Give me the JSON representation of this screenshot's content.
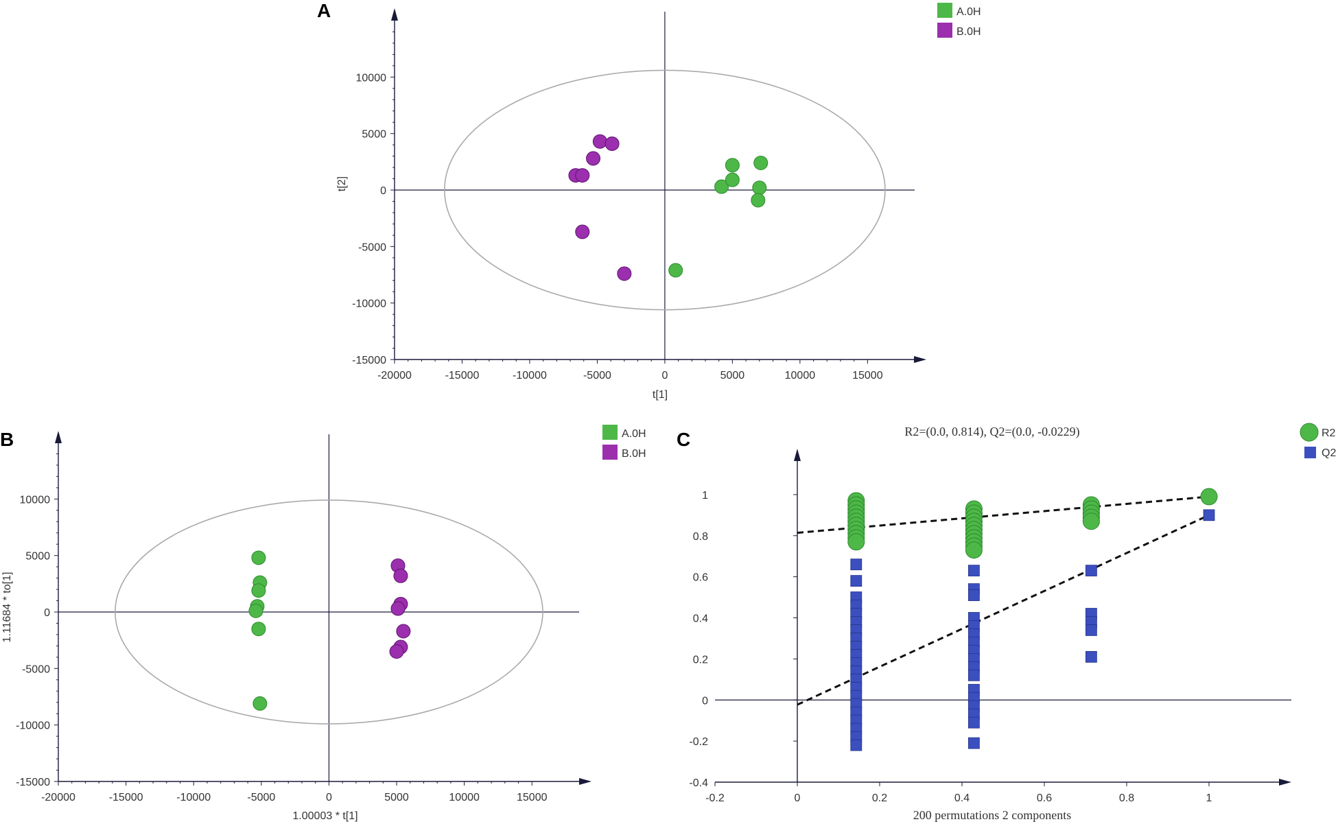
{
  "panels": {
    "a": {
      "letter": "A"
    },
    "b": {
      "letter": "B"
    },
    "c": {
      "letter": "C"
    }
  },
  "colors": {
    "group_a": "#4db848",
    "group_b": "#9b2fae",
    "r2": "#4db848",
    "q2": "#3b4fbf",
    "ellipse": "#aaaaaa",
    "axis": "#1a1a3a"
  },
  "chart_data": [
    {
      "id": "a",
      "type": "scatter",
      "title": "",
      "xlabel": "t[1]",
      "ylabel": "t[2]",
      "xlim": [
        -20000,
        19500
      ],
      "ylim": [
        -15000,
        15000
      ],
      "xticks": [
        -20000,
        -15000,
        -10000,
        -5000,
        0,
        5000,
        10000,
        15000
      ],
      "yticks": [
        -15000,
        -10000,
        -5000,
        0,
        5000,
        10000
      ],
      "ellipse": {
        "cx": 0,
        "cy": 0,
        "rx": 16300,
        "ry": 10600
      },
      "legend": {
        "placement": "top-right"
      },
      "series": [
        {
          "name": "A.0H",
          "color": "#4db848",
          "points": [
            [
              4200,
              300
            ],
            [
              5000,
              900
            ],
            [
              5000,
              2200
            ],
            [
              7100,
              2400
            ],
            [
              7000,
              200
            ],
            [
              6900,
              -900
            ],
            [
              800,
              -7100
            ]
          ]
        },
        {
          "name": "B.0H",
          "color": "#9b2fae",
          "points": [
            [
              -4800,
              4300
            ],
            [
              -3900,
              4100
            ],
            [
              -5300,
              2800
            ],
            [
              -6600,
              1300
            ],
            [
              -6100,
              1300
            ],
            [
              -6100,
              -3700
            ],
            [
              -3000,
              -7400
            ]
          ]
        }
      ]
    },
    {
      "id": "b",
      "type": "scatter",
      "title": "",
      "xlabel": "1.00003 * t[1]",
      "ylabel": "1.11684 * to[1]",
      "xlim": [
        -20000,
        19500
      ],
      "ylim": [
        -15000,
        15000
      ],
      "xticks": [
        -20000,
        -15000,
        -10000,
        -5000,
        0,
        5000,
        10000,
        15000
      ],
      "yticks": [
        -15000,
        -10000,
        -5000,
        0,
        5000,
        10000
      ],
      "ellipse": {
        "cx": 0,
        "cy": 0,
        "rx": 15800,
        "ry": 9900
      },
      "legend": {
        "placement": "top-right"
      },
      "series": [
        {
          "name": "A.0H",
          "color": "#4db848",
          "points": [
            [
              -5200,
              4800
            ],
            [
              -5100,
              2600
            ],
            [
              -5200,
              1900
            ],
            [
              -5300,
              500
            ],
            [
              -5400,
              100
            ],
            [
              -5200,
              -1500
            ],
            [
              -5100,
              -8100
            ]
          ]
        },
        {
          "name": "B.0H",
          "color": "#9b2fae",
          "points": [
            [
              5100,
              4100
            ],
            [
              5300,
              3200
            ],
            [
              5300,
              700
            ],
            [
              5100,
              300
            ],
            [
              5500,
              -1700
            ],
            [
              5300,
              -3100
            ],
            [
              5000,
              -3500
            ]
          ]
        }
      ]
    },
    {
      "id": "c",
      "type": "scatter",
      "title": "R2=(0.0, 0.814), Q2=(0.0, -0.0229)",
      "xlabel": "200 permutations 2 components",
      "ylabel": "",
      "xlim": [
        -0.2,
        1.2
      ],
      "ylim": [
        -0.4,
        1.17
      ],
      "xticks": [
        -0.2,
        0,
        0.2,
        0.4,
        0.6,
        0.8,
        1
      ],
      "yticks": [
        -0.4,
        -0.2,
        0,
        0.2,
        0.4,
        0.6,
        0.8,
        1
      ],
      "legend": {
        "placement": "top-right"
      },
      "series": [
        {
          "name": "R2",
          "color": "#4db848",
          "marker": "circle",
          "points": [
            [
              0.143,
              0.97
            ],
            [
              0.143,
              0.95
            ],
            [
              0.143,
              0.93
            ],
            [
              0.143,
              0.91
            ],
            [
              0.143,
              0.89
            ],
            [
              0.143,
              0.87
            ],
            [
              0.143,
              0.85
            ],
            [
              0.143,
              0.83
            ],
            [
              0.143,
              0.81
            ],
            [
              0.143,
              0.79
            ],
            [
              0.143,
              0.77
            ],
            [
              0.429,
              0.93
            ],
            [
              0.429,
              0.91
            ],
            [
              0.429,
              0.89
            ],
            [
              0.429,
              0.87
            ],
            [
              0.429,
              0.85
            ],
            [
              0.429,
              0.83
            ],
            [
              0.429,
              0.81
            ],
            [
              0.429,
              0.79
            ],
            [
              0.429,
              0.77
            ],
            [
              0.429,
              0.75
            ],
            [
              0.429,
              0.73
            ],
            [
              0.714,
              0.95
            ],
            [
              0.714,
              0.93
            ],
            [
              0.714,
              0.91
            ],
            [
              0.714,
              0.89
            ],
            [
              0.714,
              0.87
            ],
            [
              1.0,
              0.99
            ]
          ]
        },
        {
          "name": "Q2",
          "color": "#3b4fbf",
          "marker": "square",
          "points": [
            [
              0.143,
              0.66
            ],
            [
              0.143,
              0.58
            ],
            [
              0.143,
              0.5
            ],
            [
              0.143,
              0.46
            ],
            [
              0.143,
              0.42
            ],
            [
              0.143,
              0.38
            ],
            [
              0.143,
              0.34
            ],
            [
              0.143,
              0.3
            ],
            [
              0.143,
              0.26
            ],
            [
              0.143,
              0.22
            ],
            [
              0.143,
              0.18
            ],
            [
              0.143,
              0.14
            ],
            [
              0.143,
              0.1
            ],
            [
              0.143,
              0.06
            ],
            [
              0.143,
              0.02
            ],
            [
              0.143,
              -0.02
            ],
            [
              0.143,
              -0.06
            ],
            [
              0.143,
              -0.1
            ],
            [
              0.143,
              -0.14
            ],
            [
              0.143,
              -0.18
            ],
            [
              0.143,
              -0.22
            ],
            [
              0.429,
              0.63
            ],
            [
              0.429,
              0.54
            ],
            [
              0.429,
              0.51
            ],
            [
              0.429,
              0.4
            ],
            [
              0.429,
              0.36
            ],
            [
              0.429,
              0.32
            ],
            [
              0.429,
              0.28
            ],
            [
              0.429,
              0.24
            ],
            [
              0.429,
              0.2
            ],
            [
              0.429,
              0.16
            ],
            [
              0.429,
              0.12
            ],
            [
              0.429,
              0.05
            ],
            [
              0.429,
              0.01
            ],
            [
              0.429,
              -0.03
            ],
            [
              0.429,
              -0.07
            ],
            [
              0.429,
              -0.11
            ],
            [
              0.429,
              -0.21
            ],
            [
              0.714,
              0.63
            ],
            [
              0.714,
              0.42
            ],
            [
              0.714,
              0.38
            ],
            [
              0.714,
              0.34
            ],
            [
              0.714,
              0.21
            ],
            [
              1.0,
              0.9
            ]
          ]
        }
      ],
      "trend_lines": [
        {
          "name": "R2",
          "from": [
            0.0,
            0.814
          ],
          "to": [
            1.0,
            0.99
          ]
        },
        {
          "name": "Q2",
          "from": [
            0.0,
            -0.0229
          ],
          "to": [
            1.0,
            0.9
          ]
        }
      ]
    }
  ]
}
